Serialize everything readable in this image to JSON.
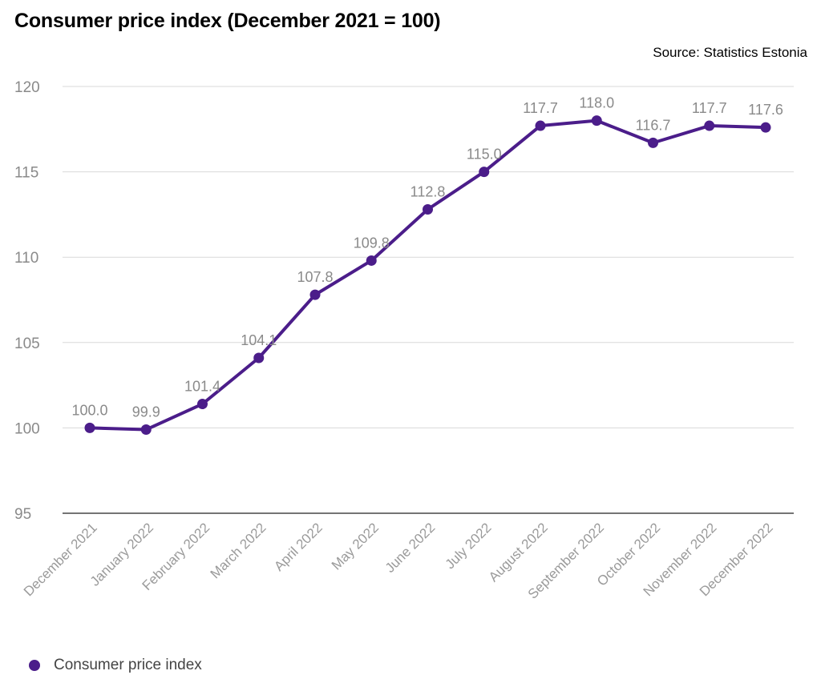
{
  "title": "Consumer price index (December 2021 = 100)",
  "source": "Source: Statistics Estonia",
  "legend": {
    "label": "Consumer price index"
  },
  "colors": {
    "series": "#4b1d8a",
    "grid": "#d9d9d9",
    "axis": "#222222",
    "label": "#8a8a8a"
  },
  "chart_data": {
    "type": "line",
    "categories": [
      "December 2021",
      "January 2022",
      "February 2022",
      "March 2022",
      "April 2022",
      "May 2022",
      "June 2022",
      "July 2022",
      "August 2022",
      "September 2022",
      "October 2022",
      "November 2022",
      "December 2022"
    ],
    "series": [
      {
        "name": "Consumer price index",
        "values": [
          100.0,
          99.9,
          101.4,
          104.1,
          107.8,
          109.8,
          112.8,
          115.0,
          117.7,
          118.0,
          116.7,
          117.7,
          117.6
        ]
      }
    ],
    "data_labels": [
      "100.0",
      "99.9",
      "101.4",
      "104.1",
      "107.8",
      "109.8",
      "112.8",
      "115.0",
      "117.7",
      "118.0",
      "116.7",
      "117.7",
      "117.6"
    ],
    "yticks": [
      95,
      100,
      105,
      110,
      115,
      120
    ],
    "ylim": [
      95,
      120
    ],
    "grid": true,
    "legend_position": "bottom-left",
    "title": "Consumer price index (December 2021 = 100)",
    "xlabel": "",
    "ylabel": ""
  }
}
